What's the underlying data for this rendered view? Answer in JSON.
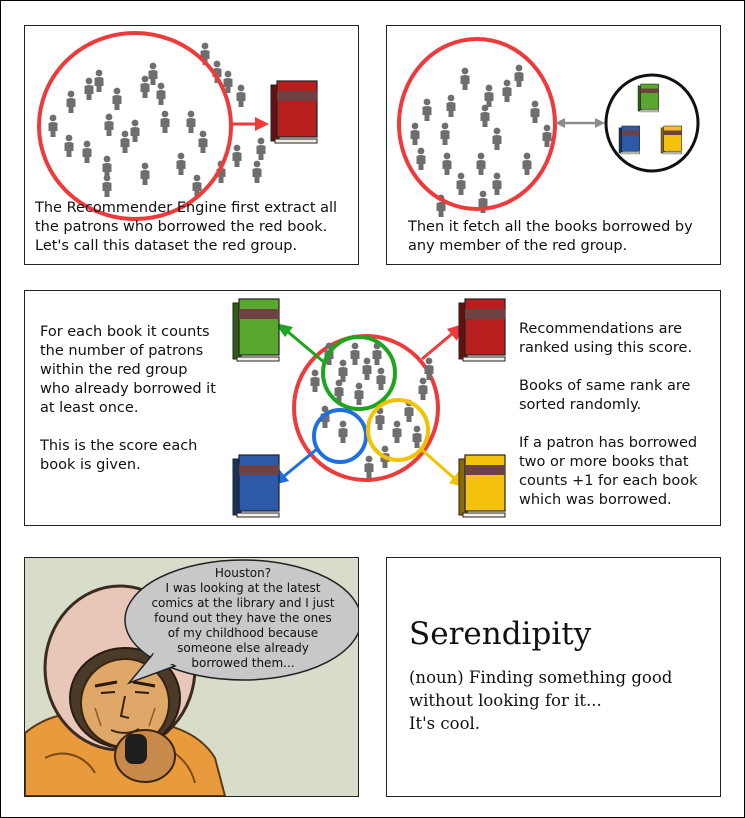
{
  "panel1": {
    "lines": [
      "The Recommender Engine first extract all",
      "the patrons who borrowed the red book.",
      "Let's call this dataset the red group."
    ]
  },
  "panel2": {
    "lines": [
      "Then it fetch all the books borrowed by",
      "any member of the red group."
    ]
  },
  "panel3": {
    "left_paragraphs": [
      [
        "For each book it counts",
        "the number of patrons",
        "within the red group",
        "who already borrowed it",
        "at least once."
      ],
      [
        "This is the score each",
        "book is given."
      ]
    ],
    "right_paragraphs": [
      [
        "Recommendations are",
        "ranked using this score."
      ],
      [
        "Books of same rank are",
        "sorted randomly."
      ],
      [
        "If a patron has borrowed",
        "two or more books that",
        "counts +1 for each book",
        "which was borrowed."
      ]
    ]
  },
  "panel4": {
    "speech_lines": [
      "Houston?",
      "I was looking at the latest",
      "comics at the library and I just",
      "found out they have the ones",
      "of my childhood because",
      "someone else already",
      "borrowed them..."
    ]
  },
  "panel5": {
    "word": "Serendipity",
    "definition_lines": [
      "(noun) Finding something good",
      "without looking for it..."
    ],
    "note": "It's cool."
  },
  "colors": {
    "red": "#ee3a3a",
    "green": "#1ea51e",
    "blue": "#1f6fe0",
    "yellow": "#f2c200",
    "gray_arrow": "#8c8c8c",
    "person": "#6e6e6e",
    "comic_bg": "#d8dccb"
  }
}
